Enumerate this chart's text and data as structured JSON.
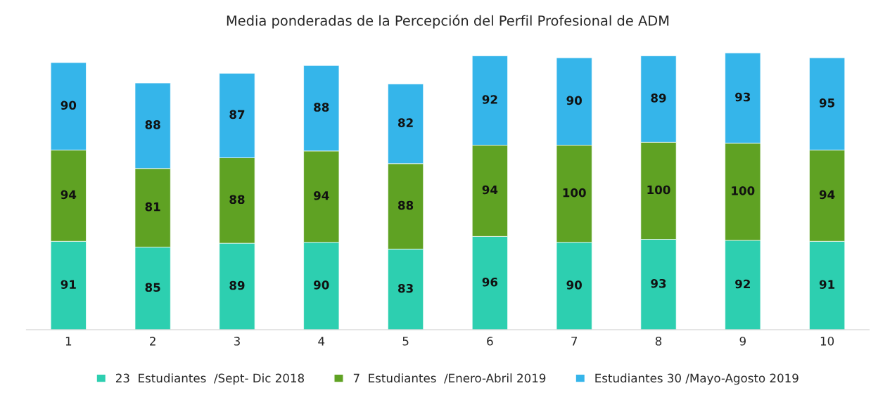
{
  "chart_data": {
    "type": "bar",
    "title": "Media ponderadas de la Percepción del Perfil Profesional de ADM",
    "categories": [
      "1",
      "2",
      "3",
      "4",
      "5",
      "6",
      "7",
      "8",
      "9",
      "10"
    ],
    "stacked": true,
    "data_labels": true,
    "legend": "bottom",
    "grid": false,
    "tick_labels": "x",
    "series": [
      {
        "name": "23  Estudiantes  /Sept- Dic 2018",
        "color": "#2dcfb0",
        "values": [
          91,
          85,
          89,
          90,
          83,
          96,
          90,
          93,
          92,
          91
        ]
      },
      {
        "name": "7  Estudiantes  /Enero-Abril 2019",
        "color": "#5fa223",
        "values": [
          94,
          81,
          88,
          94,
          88,
          94,
          100,
          100,
          100,
          94
        ]
      },
      {
        "name": "Estudiantes 30 /Mayo-Agosto 2019",
        "color": "#35b5ea",
        "values": [
          90,
          88,
          87,
          88,
          82,
          92,
          90,
          89,
          93,
          95
        ]
      }
    ]
  }
}
